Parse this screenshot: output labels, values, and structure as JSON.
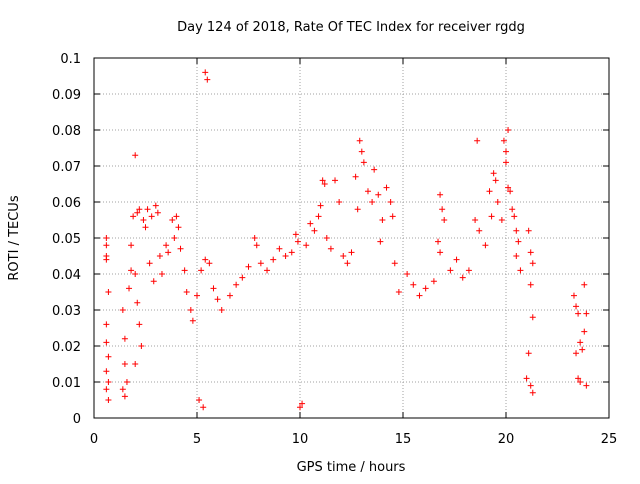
{
  "chart_data": {
    "type": "scatter",
    "title": "Day 124 of 2018, Rate Of TEC Index for receiver rgdg",
    "xlabel": "GPS time / hours",
    "ylabel": "ROTI / TECUs",
    "xlim": [
      0,
      25
    ],
    "ylim": [
      0,
      0.1
    ],
    "x_ticks": [
      "0",
      "5",
      "10",
      "15",
      "20",
      "25"
    ],
    "y_ticks": [
      "0",
      "0.01",
      "0.02",
      "0.03",
      "0.04",
      "0.05",
      "0.06",
      "0.07",
      "0.08",
      "0.09",
      "0.1"
    ],
    "grid": true,
    "legend": "none",
    "marker": "+",
    "color": "#ff0000",
    "series": [
      {
        "values": [
          [
            0.6,
            0.05
          ],
          [
            0.6,
            0.048
          ],
          [
            0.6,
            0.045
          ],
          [
            0.6,
            0.044
          ],
          [
            0.7,
            0.035
          ],
          [
            0.6,
            0.026
          ],
          [
            0.6,
            0.021
          ],
          [
            0.7,
            0.017
          ],
          [
            0.6,
            0.013
          ],
          [
            0.7,
            0.01
          ],
          [
            0.6,
            0.008
          ],
          [
            0.7,
            0.005
          ],
          [
            1.4,
            0.03
          ],
          [
            1.5,
            0.022
          ],
          [
            1.5,
            0.015
          ],
          [
            1.6,
            0.01
          ],
          [
            1.4,
            0.008
          ],
          [
            1.5,
            0.006
          ],
          [
            1.7,
            0.036
          ],
          [
            1.8,
            0.048
          ],
          [
            1.9,
            0.056
          ],
          [
            2.0,
            0.073
          ],
          [
            2.1,
            0.057
          ],
          [
            2.2,
            0.058
          ],
          [
            1.8,
            0.041
          ],
          [
            2.0,
            0.04
          ],
          [
            2.1,
            0.032
          ],
          [
            2.2,
            0.026
          ],
          [
            2.3,
            0.02
          ],
          [
            2.0,
            0.015
          ],
          [
            2.4,
            0.055
          ],
          [
            2.5,
            0.053
          ],
          [
            2.6,
            0.058
          ],
          [
            2.8,
            0.056
          ],
          [
            3.0,
            0.059
          ],
          [
            3.1,
            0.057
          ],
          [
            2.7,
            0.043
          ],
          [
            2.9,
            0.038
          ],
          [
            3.2,
            0.045
          ],
          [
            3.3,
            0.04
          ],
          [
            3.5,
            0.048
          ],
          [
            3.6,
            0.046
          ],
          [
            3.8,
            0.055
          ],
          [
            3.9,
            0.05
          ],
          [
            4.0,
            0.056
          ],
          [
            4.1,
            0.053
          ],
          [
            4.2,
            0.047
          ],
          [
            4.4,
            0.041
          ],
          [
            4.5,
            0.035
          ],
          [
            4.7,
            0.03
          ],
          [
            4.8,
            0.027
          ],
          [
            5.0,
            0.034
          ],
          [
            5.2,
            0.041
          ],
          [
            5.4,
            0.044
          ],
          [
            5.4,
            0.096
          ],
          [
            5.5,
            0.094
          ],
          [
            5.6,
            0.043
          ],
          [
            5.8,
            0.036
          ],
          [
            6.0,
            0.033
          ],
          [
            6.2,
            0.03
          ],
          [
            5.3,
            0.003
          ],
          [
            5.1,
            0.005
          ],
          [
            6.6,
            0.034
          ],
          [
            6.9,
            0.037
          ],
          [
            7.2,
            0.039
          ],
          [
            7.5,
            0.042
          ],
          [
            7.8,
            0.05
          ],
          [
            7.9,
            0.048
          ],
          [
            8.1,
            0.043
          ],
          [
            8.4,
            0.041
          ],
          [
            8.7,
            0.044
          ],
          [
            9.0,
            0.047
          ],
          [
            9.3,
            0.045
          ],
          [
            9.6,
            0.046
          ],
          [
            9.8,
            0.051
          ],
          [
            9.9,
            0.049
          ],
          [
            10.1,
            0.004
          ],
          [
            10.0,
            0.003
          ],
          [
            10.3,
            0.048
          ],
          [
            10.5,
            0.054
          ],
          [
            10.7,
            0.052
          ],
          [
            10.9,
            0.056
          ],
          [
            11.1,
            0.066
          ],
          [
            11.2,
            0.065
          ],
          [
            11.0,
            0.059
          ],
          [
            11.3,
            0.05
          ],
          [
            11.5,
            0.047
          ],
          [
            11.7,
            0.066
          ],
          [
            11.9,
            0.06
          ],
          [
            12.1,
            0.045
          ],
          [
            12.3,
            0.043
          ],
          [
            12.5,
            0.046
          ],
          [
            12.7,
            0.067
          ],
          [
            12.9,
            0.077
          ],
          [
            13.0,
            0.074
          ],
          [
            13.1,
            0.071
          ],
          [
            12.8,
            0.058
          ],
          [
            13.3,
            0.063
          ],
          [
            13.5,
            0.06
          ],
          [
            13.6,
            0.069
          ],
          [
            13.8,
            0.062
          ],
          [
            14.0,
            0.055
          ],
          [
            14.2,
            0.064
          ],
          [
            14.4,
            0.06
          ],
          [
            14.5,
            0.056
          ],
          [
            13.9,
            0.049
          ],
          [
            14.6,
            0.043
          ],
          [
            14.8,
            0.035
          ],
          [
            15.2,
            0.04
          ],
          [
            15.5,
            0.037
          ],
          [
            15.8,
            0.034
          ],
          [
            16.1,
            0.036
          ],
          [
            16.5,
            0.038
          ],
          [
            16.7,
            0.049
          ],
          [
            16.8,
            0.062
          ],
          [
            16.9,
            0.058
          ],
          [
            17.0,
            0.055
          ],
          [
            16.8,
            0.046
          ],
          [
            17.3,
            0.041
          ],
          [
            17.6,
            0.044
          ],
          [
            17.9,
            0.039
          ],
          [
            18.2,
            0.041
          ],
          [
            18.5,
            0.055
          ],
          [
            18.6,
            0.077
          ],
          [
            18.7,
            0.052
          ],
          [
            19.0,
            0.048
          ],
          [
            19.2,
            0.063
          ],
          [
            19.4,
            0.068
          ],
          [
            19.5,
            0.066
          ],
          [
            19.6,
            0.06
          ],
          [
            19.3,
            0.056
          ],
          [
            19.8,
            0.055
          ],
          [
            19.9,
            0.077
          ],
          [
            20.0,
            0.074
          ],
          [
            20.1,
            0.08
          ],
          [
            20.0,
            0.071
          ],
          [
            20.1,
            0.064
          ],
          [
            20.2,
            0.063
          ],
          [
            20.3,
            0.058
          ],
          [
            20.4,
            0.056
          ],
          [
            20.5,
            0.052
          ],
          [
            20.6,
            0.049
          ],
          [
            20.5,
            0.045
          ],
          [
            20.7,
            0.041
          ],
          [
            21.1,
            0.052
          ],
          [
            21.2,
            0.046
          ],
          [
            21.3,
            0.043
          ],
          [
            21.2,
            0.037
          ],
          [
            21.3,
            0.028
          ],
          [
            21.1,
            0.018
          ],
          [
            21.0,
            0.011
          ],
          [
            21.2,
            0.009
          ],
          [
            21.3,
            0.007
          ],
          [
            23.3,
            0.034
          ],
          [
            23.4,
            0.031
          ],
          [
            23.5,
            0.029
          ],
          [
            23.6,
            0.021
          ],
          [
            23.4,
            0.018
          ],
          [
            23.5,
            0.011
          ],
          [
            23.6,
            0.01
          ],
          [
            23.8,
            0.037
          ],
          [
            23.9,
            0.029
          ],
          [
            23.8,
            0.024
          ],
          [
            23.7,
            0.019
          ],
          [
            23.9,
            0.009
          ]
        ]
      }
    ]
  }
}
